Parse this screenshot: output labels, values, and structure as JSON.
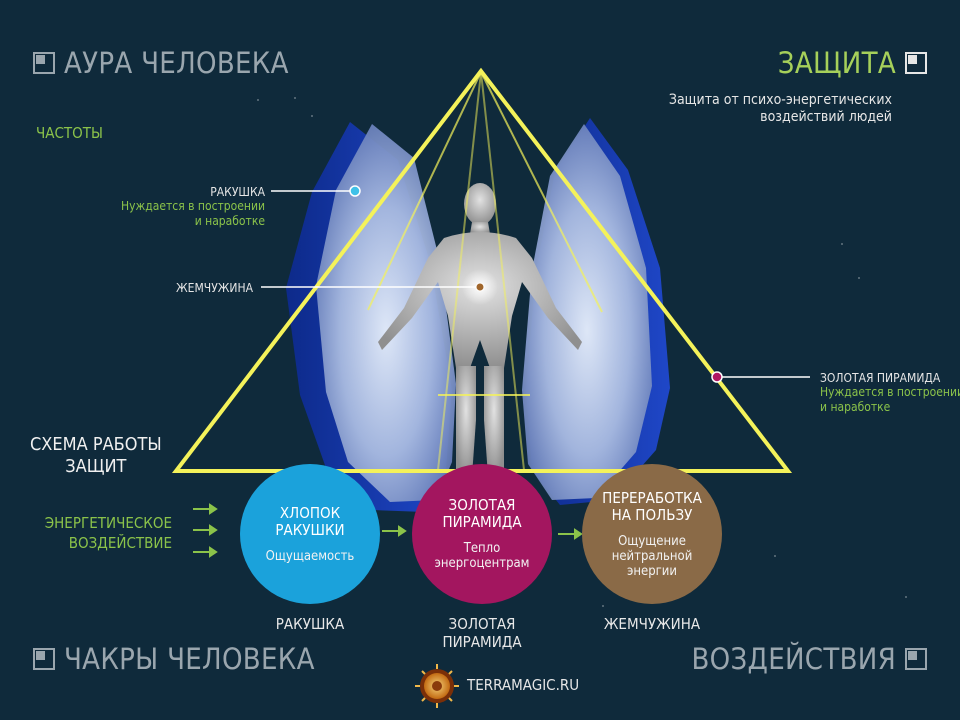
{
  "nav": {
    "aura": "АУРА ЧЕЛОВЕКА",
    "protection": "ЗАЩИТА",
    "chakras": "ЧАКРЫ ЧЕЛОВЕКА",
    "influences": "ВОЗДЕЙСТВИЯ"
  },
  "protection_subtitle_line1": "Защита от психо-энергетических",
  "protection_subtitle_line2": "воздействий людей",
  "frequencies": "ЧАСТОТЫ",
  "callouts": {
    "shell": {
      "title": "РАКУШКА",
      "note_line1": "Нуждается в построении",
      "note_line2": "и наработке"
    },
    "pearl": {
      "title": "ЖЕМЧУЖИНА"
    },
    "pyramid": {
      "title": "ЗОЛОТАЯ ПИРАМИДА",
      "note_line1": "Нуждается в построении",
      "note_line2": "и наработке"
    }
  },
  "scheme": {
    "line1": "СХЕМА РАБОТЫ",
    "line2": "ЗАЩИТ"
  },
  "energy_impact": {
    "line1": "ЭНЕРГЕТИЧЕСКОЕ",
    "line2": "ВОЗДЕЙСТВИЕ"
  },
  "steps": [
    {
      "title_line1": "ХЛОПОК",
      "title_line2": "РАКУШКИ",
      "sub_line1": "Ощущаемость",
      "sub_line2": "",
      "sub_line3": "",
      "caption_line1": "РАКУШКА",
      "caption_line2": ""
    },
    {
      "title_line1": "ЗОЛОТАЯ",
      "title_line2": "ПИРАМИДА",
      "sub_line1": "Тепло",
      "sub_line2": "энергоцентрам",
      "sub_line3": "",
      "caption_line1": "ЗОЛОТАЯ",
      "caption_line2": "ПИРАМИДА"
    },
    {
      "title_line1": "ПЕРЕРАБОТКА",
      "title_line2": "НА ПОЛЬЗУ",
      "sub_line1": "Ощущение",
      "sub_line2": "нейтральной",
      "sub_line3": "энергии",
      "caption_line1": "ЖЕМЧУЖИНА",
      "caption_line2": ""
    }
  ],
  "site": "TERRAMAGIC.RU",
  "colors": {
    "background": "#0f2a3b",
    "accent_green": "#8bc34a",
    "pyramid_yellow": "#f4f25a",
    "shell_circle": "#1aa3dc",
    "pyramid_circle": "#a3165f",
    "pearl_circle": "#8a6a47",
    "shell_dot": "#3fc1e8",
    "pearl_dot": "#a0662c",
    "pyramid_dot": "#b01762"
  },
  "icons": [
    "square-nav-icon",
    "arrow-right-icon",
    "logo-icon"
  ]
}
